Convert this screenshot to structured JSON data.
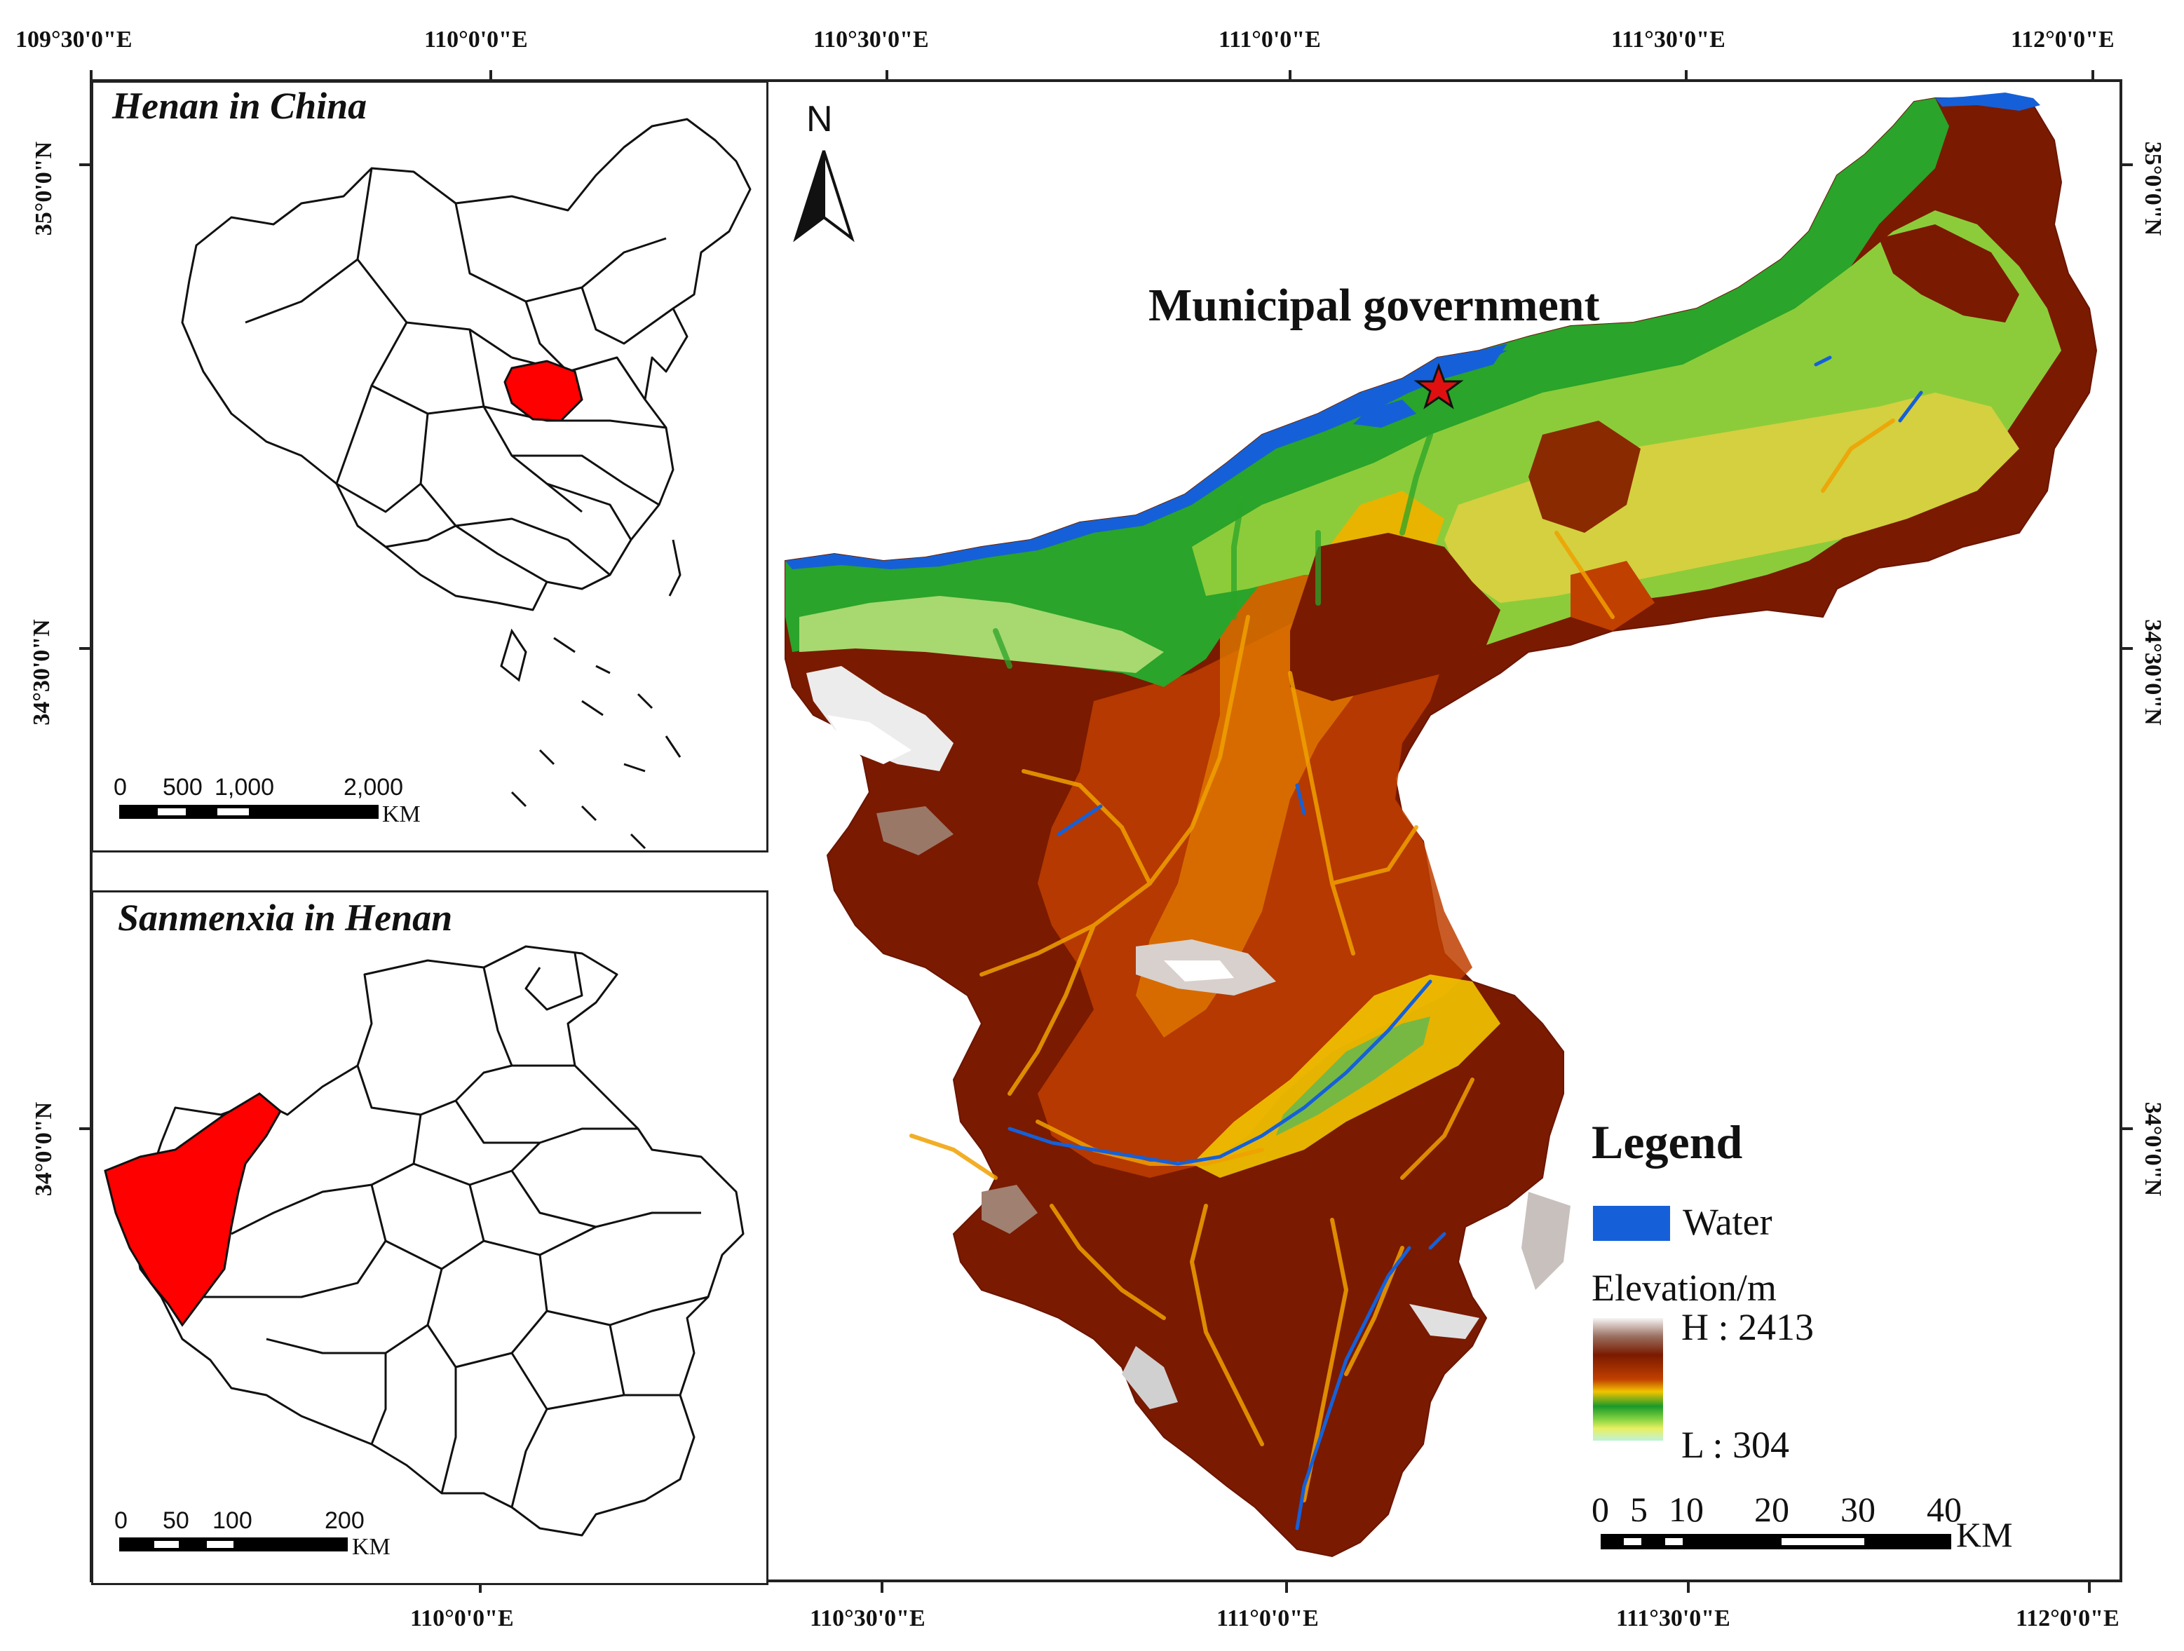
{
  "top_coords": [
    "109°30'0\"E",
    "110°0'0\"E",
    "110°30'0\"E",
    "111°0'0\"E",
    "111°30'0\"E",
    "112°0'0\"E"
  ],
  "bottom_coords": [
    "110°0'0\"E",
    "110°30'0\"E",
    "111°0'0\"E",
    "111°30'0\"E",
    "112°0'0\"E"
  ],
  "left_coords": [
    "35°0'0\"N",
    "34°30'0\"N",
    "34°0'0\"N"
  ],
  "right_coords": [
    "35°0'0\"N",
    "34°30'0\"N",
    "34°0'0\"N"
  ],
  "inset_china": {
    "title": "Henan in China",
    "scale_labels": [
      "0",
      "500",
      "1,000",
      "2,000"
    ],
    "scale_unit": "KM"
  },
  "inset_henan": {
    "title": "Sanmenxia in Henan",
    "scale_labels": [
      "0",
      "50",
      "100",
      "200"
    ],
    "scale_unit": "KM"
  },
  "north_label": "N",
  "annotation": "Municipal government",
  "legend": {
    "title": "Legend",
    "water_label": "Water",
    "elevation_title": "Elevation/m",
    "high_label": "H : 2413",
    "low_label": "L : 304"
  },
  "main_scale": {
    "labels": [
      "0",
      "5",
      "10",
      "20",
      "30",
      "40"
    ],
    "unit": "KM"
  },
  "colors": {
    "highlight": "#ff0000",
    "water": "#1560d8",
    "elev_low": "#bff2d8",
    "elev_green": "#1a9a2a",
    "elev_yellow": "#f2c400",
    "elev_orange": "#e07800",
    "elev_brown": "#7a1a00",
    "elev_high": "#f4f4f4"
  }
}
